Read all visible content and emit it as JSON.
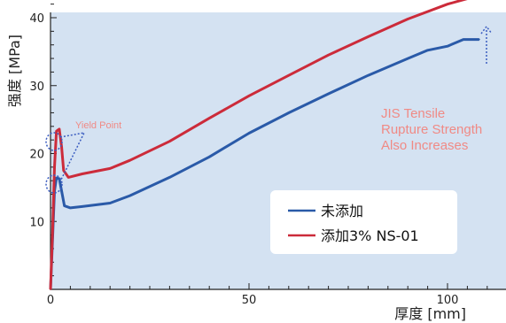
{
  "chart_data": {
    "type": "line",
    "xlabel": "厚度 [mm]",
    "ylabel": "强度 [MPa]",
    "xlim": [
      0,
      115
    ],
    "ylim": [
      0,
      45
    ],
    "xticks": [
      {
        "value": 0,
        "label": "0"
      },
      {
        "value": 50,
        "label": "50"
      },
      {
        "value": 100,
        "label": "100"
      }
    ],
    "yticks": [
      {
        "value": 10,
        "label": "10"
      },
      {
        "value": 20,
        "label": "20"
      },
      {
        "value": 30,
        "label": "30"
      },
      {
        "value": 40,
        "label": "40"
      }
    ],
    "grid": false,
    "legend": "lower-right",
    "series": [
      {
        "name": "未添加",
        "color": "#2a5aa8",
        "points": [
          [
            0,
            0
          ],
          [
            0.5,
            7
          ],
          [
            1,
            14.5
          ],
          [
            1.5,
            16.4
          ],
          [
            2.2,
            16.3
          ],
          [
            2.8,
            14.5
          ],
          [
            3.5,
            12.3
          ],
          [
            5,
            12
          ],
          [
            8,
            12.2
          ],
          [
            15,
            12.7
          ],
          [
            20,
            13.8
          ],
          [
            30,
            16.5
          ],
          [
            40,
            19.5
          ],
          [
            50,
            23
          ],
          [
            60,
            26
          ],
          [
            70,
            28.8
          ],
          [
            80,
            31.5
          ],
          [
            90,
            34
          ],
          [
            95,
            35.2
          ],
          [
            100,
            35.8
          ],
          [
            104,
            36.8
          ],
          [
            108,
            36.8
          ]
        ]
      },
      {
        "name": "添加3% NS-01",
        "color": "#cc2b3a",
        "points": [
          [
            0,
            0
          ],
          [
            0.5,
            8
          ],
          [
            1,
            18
          ],
          [
            1.5,
            23.3
          ],
          [
            2.2,
            23.6
          ],
          [
            2.8,
            21
          ],
          [
            3.3,
            17.5
          ],
          [
            4.5,
            16.5
          ],
          [
            8,
            17
          ],
          [
            15,
            17.8
          ],
          [
            20,
            19
          ],
          [
            30,
            21.8
          ],
          [
            40,
            25.2
          ],
          [
            50,
            28.5
          ],
          [
            60,
            31.5
          ],
          [
            70,
            34.5
          ],
          [
            80,
            37.2
          ],
          [
            90,
            39.8
          ],
          [
            100,
            42
          ],
          [
            105,
            42.8
          ],
          [
            107,
            43.3
          ],
          [
            110,
            43.3
          ]
        ]
      }
    ],
    "annotations": [
      {
        "text": "Yield Point",
        "color": "#f08a85"
      },
      {
        "lines": [
          "JIS Tensile",
          "Rupture Strength",
          "Also Increases"
        ],
        "color": "#f08a85"
      }
    ]
  }
}
